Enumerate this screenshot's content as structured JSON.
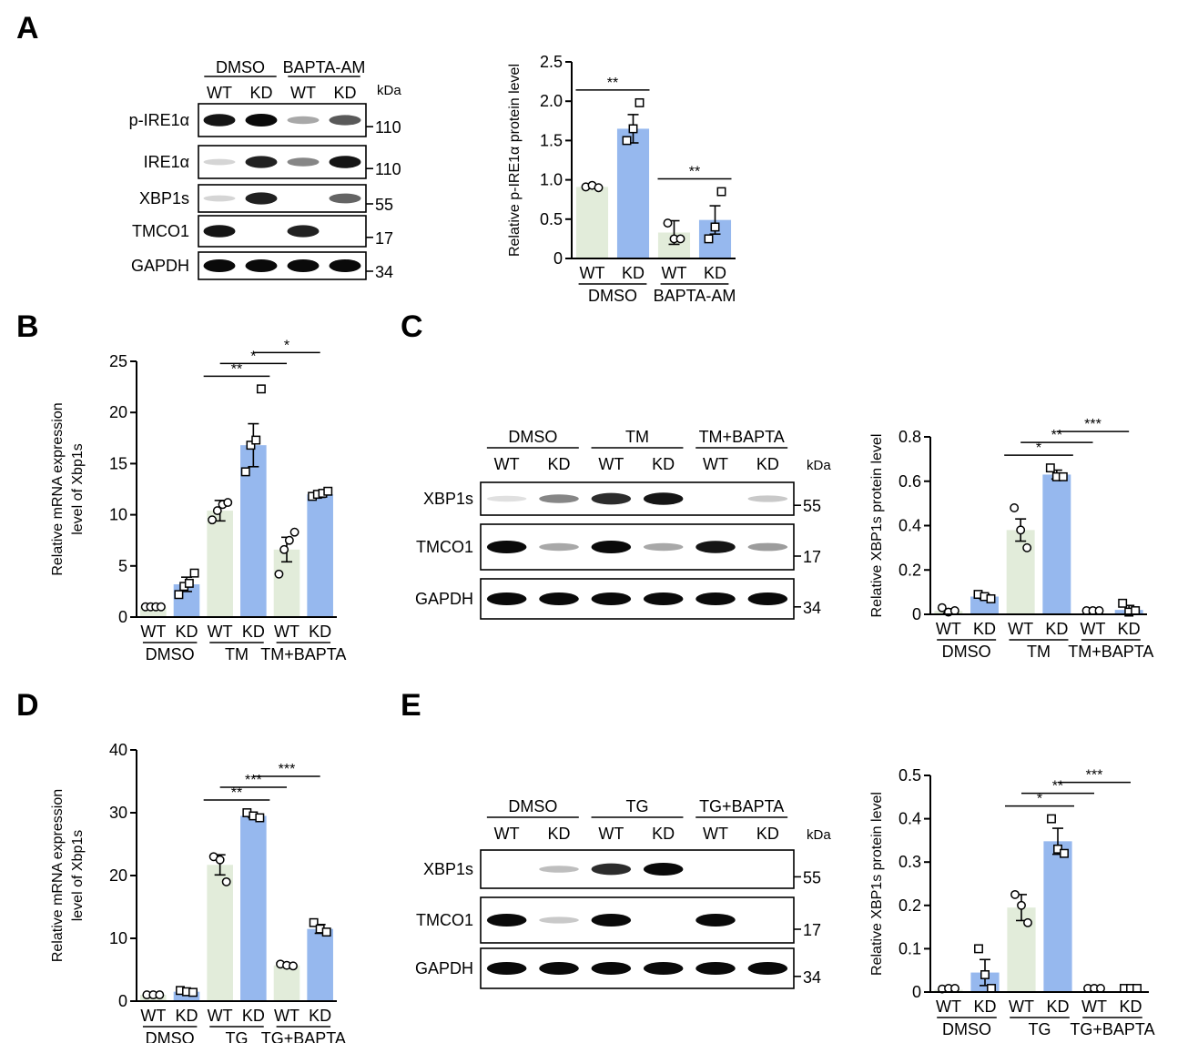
{
  "panel_labels": [
    "A",
    "B",
    "C",
    "D",
    "E"
  ],
  "blots": [
    {
      "panel": "A",
      "groups": [
        "DMSO",
        "BAPTA-AM"
      ],
      "lanes": [
        "WT",
        "KD",
        "WT",
        "KD"
      ],
      "kda_label": "kDa",
      "rows": [
        {
          "label": "p-IRE1α",
          "mw": "110",
          "intensity": [
            0.95,
            1.0,
            0.3,
            0.65
          ]
        },
        {
          "label": "IRE1α",
          "mw": "110",
          "intensity": [
            0.1,
            0.9,
            0.45,
            0.95
          ]
        },
        {
          "label": "XBP1s",
          "mw": "55",
          "intensity": [
            0.1,
            0.9,
            0.0,
            0.6
          ]
        },
        {
          "label": "TMCO1",
          "mw": "17",
          "intensity": [
            0.95,
            0.0,
            0.9,
            0.0
          ]
        },
        {
          "label": "GAPDH",
          "mw": "34",
          "intensity": [
            1.0,
            1.0,
            1.0,
            1.0
          ]
        }
      ]
    },
    {
      "panel": "C",
      "groups": [
        "DMSO",
        "TM",
        "TM+BAPTA"
      ],
      "lanes": [
        "WT",
        "KD",
        "WT",
        "KD",
        "WT",
        "KD"
      ],
      "kda_label": "kDa",
      "rows": [
        {
          "label": "XBP1s",
          "mw": "55",
          "intensity": [
            0.05,
            0.45,
            0.85,
            0.95,
            0.0,
            0.15
          ]
        },
        {
          "label": "TMCO1",
          "mw": "17",
          "intensity": [
            1.0,
            0.3,
            1.0,
            0.3,
            0.95,
            0.35
          ]
        },
        {
          "label": "GAPDH",
          "mw": "34",
          "intensity": [
            1.0,
            1.0,
            1.0,
            1.0,
            1.0,
            1.0
          ]
        }
      ]
    },
    {
      "panel": "E",
      "groups": [
        "DMSO",
        "TG",
        "TG+BAPTA"
      ],
      "lanes": [
        "WT",
        "KD",
        "WT",
        "KD",
        "WT",
        "KD"
      ],
      "kda_label": "kDa",
      "rows": [
        {
          "label": "XBP1s",
          "mw": "55",
          "intensity": [
            0.0,
            0.2,
            0.85,
            1.0,
            0.0,
            0.0
          ]
        },
        {
          "label": "TMCO1",
          "mw": "17",
          "intensity": [
            1.0,
            0.15,
            1.0,
            0.0,
            1.0,
            0.0
          ]
        },
        {
          "label": "GAPDH",
          "mw": "34",
          "intensity": [
            1.0,
            1.0,
            1.0,
            1.0,
            1.0,
            1.0
          ]
        }
      ]
    }
  ],
  "colors": {
    "wt_bar": "#e2ecda",
    "kd_bar": "#96b8ee",
    "axis": "#000000"
  },
  "chart_data": [
    {
      "panel": "A",
      "type": "bar",
      "categories": [
        "WT",
        "KD",
        "WT",
        "KD"
      ],
      "groups": [
        {
          "label": "DMSO",
          "span": [
            0,
            1
          ]
        },
        {
          "label": "BAPTA-AM",
          "span": [
            2,
            3
          ]
        }
      ],
      "values": [
        0.91,
        1.65,
        0.33,
        0.49
      ],
      "errors": [
        0.02,
        0.18,
        0.15,
        0.18
      ],
      "points": [
        [
          0.91,
          0.93,
          0.9
        ],
        [
          1.5,
          1.65,
          1.98
        ],
        [
          0.45,
          0.25,
          0.25
        ],
        [
          0.25,
          0.4,
          0.85
        ]
      ],
      "marker": [
        "circle",
        "square",
        "circle",
        "square"
      ],
      "ylabel": "Relative p-IRE1α protein level",
      "xlabel": "",
      "ylim": [
        0,
        2.5
      ],
      "yticks": [
        "0",
        "0.5",
        "1.0",
        "1.5",
        "2.0",
        "2.5"
      ],
      "ytick_values": [
        0,
        0.5,
        1.0,
        1.5,
        2.0,
        2.5
      ],
      "significance": [
        {
          "from": 0,
          "to": 1,
          "label": "**"
        },
        {
          "from": 2,
          "to": 3,
          "label": "**"
        }
      ]
    },
    {
      "panel": "B",
      "type": "bar",
      "categories": [
        "WT",
        "KD",
        "WT",
        "KD",
        "WT",
        "KD"
      ],
      "groups": [
        {
          "label": "DMSO",
          "span": [
            0,
            1
          ]
        },
        {
          "label": "TM",
          "span": [
            2,
            3
          ]
        },
        {
          "label": "TM+BAPTA",
          "span": [
            4,
            5
          ]
        }
      ],
      "values": [
        1.0,
        3.2,
        10.4,
        16.8,
        6.6,
        12.0
      ],
      "errors": [
        0.1,
        0.7,
        1.0,
        2.1,
        1.2,
        0.3
      ],
      "points": [
        [
          1.0,
          1.0,
          1.0,
          1.0
        ],
        [
          2.2,
          3.0,
          3.3,
          4.3
        ],
        [
          9.5,
          10.4,
          11.0,
          11.2
        ],
        [
          14.2,
          16.8,
          17.3,
          22.3
        ],
        [
          4.2,
          6.6,
          7.5,
          8.3
        ],
        [
          11.8,
          12.0,
          12.1,
          12.3
        ]
      ],
      "marker": [
        "circle",
        "square",
        "circle",
        "square",
        "circle",
        "square"
      ],
      "ylabel": [
        "Relative mRNA expression",
        "level of Xbp1s"
      ],
      "xlabel": "",
      "ylim": [
        0,
        25
      ],
      "yticks": [
        "0",
        "5",
        "10",
        "15",
        "20",
        "25"
      ],
      "ytick_values": [
        0,
        5,
        10,
        15,
        20,
        25
      ],
      "significance": [
        {
          "from": 2,
          "to": 3,
          "label": "**"
        },
        {
          "from": 2,
          "to": 4,
          "label": "*"
        },
        {
          "from": 3,
          "to": 5,
          "label": "*"
        }
      ]
    },
    {
      "panel": "C",
      "type": "bar",
      "categories": [
        "WT",
        "KD",
        "WT",
        "KD",
        "WT",
        "KD"
      ],
      "groups": [
        {
          "label": "DMSO",
          "span": [
            0,
            1
          ]
        },
        {
          "label": "TM",
          "span": [
            2,
            3
          ]
        },
        {
          "label": "TM+BAPTA",
          "span": [
            4,
            5
          ]
        }
      ],
      "values": [
        0.015,
        0.08,
        0.38,
        0.63,
        0.0,
        0.02
      ],
      "errors": [
        0.01,
        0.01,
        0.05,
        0.02,
        0.0,
        0.02
      ],
      "points": [
        [
          0.03,
          0.01,
          0.0
        ],
        [
          0.09,
          0.08,
          0.07
        ],
        [
          0.48,
          0.38,
          0.3
        ],
        [
          0.66,
          0.62,
          0.62
        ],
        [
          0.0,
          0.0,
          0.0
        ],
        [
          0.05,
          0.01,
          0.0
        ]
      ],
      "marker": [
        "circle",
        "square",
        "circle",
        "square",
        "circle",
        "square"
      ],
      "ylabel": "Relative XBP1s protein level",
      "xlabel": "",
      "ylim": [
        0,
        0.8
      ],
      "yticks": [
        "0",
        "0.2",
        "0.4",
        "0.6",
        "0.8"
      ],
      "ytick_values": [
        0,
        0.2,
        0.4,
        0.6,
        0.8
      ],
      "significance": [
        {
          "from": 2,
          "to": 3,
          "label": "*"
        },
        {
          "from": 2,
          "to": 4,
          "label": "**"
        },
        {
          "from": 3,
          "to": 5,
          "label": "***"
        }
      ]
    },
    {
      "panel": "D",
      "type": "bar",
      "categories": [
        "WT",
        "KD",
        "WT",
        "KD",
        "WT",
        "KD"
      ],
      "groups": [
        {
          "label": "DMSO",
          "span": [
            0,
            1
          ]
        },
        {
          "label": "TG",
          "span": [
            2,
            3
          ]
        },
        {
          "label": "TG+BAPTA",
          "span": [
            4,
            5
          ]
        }
      ],
      "values": [
        1.0,
        1.5,
        21.7,
        29.5,
        5.7,
        11.5
      ],
      "errors": [
        0.1,
        0.2,
        1.6,
        0.3,
        0.2,
        0.7
      ],
      "points": [
        [
          1.0,
          1.0,
          1.0
        ],
        [
          1.7,
          1.5,
          1.4
        ],
        [
          23.0,
          22.5,
          19.0
        ],
        [
          30.0,
          29.5,
          29.2
        ],
        [
          5.9,
          5.7,
          5.6
        ],
        [
          12.5,
          11.5,
          11.0
        ]
      ],
      "marker": [
        "circle",
        "square",
        "circle",
        "square",
        "circle",
        "square"
      ],
      "ylabel": [
        "Relative mRNA expression",
        "level of Xbp1s"
      ],
      "xlabel": "",
      "ylim": [
        0,
        40
      ],
      "yticks": [
        "0",
        "10",
        "20",
        "30",
        "40"
      ],
      "ytick_values": [
        0,
        10,
        20,
        30,
        40
      ],
      "significance": [
        {
          "from": 2,
          "to": 3,
          "label": "**"
        },
        {
          "from": 2,
          "to": 4,
          "label": "***"
        },
        {
          "from": 3,
          "to": 5,
          "label": "***"
        }
      ]
    },
    {
      "panel": "E",
      "type": "bar",
      "categories": [
        "WT",
        "KD",
        "WT",
        "KD",
        "WT",
        "KD"
      ],
      "groups": [
        {
          "label": "DMSO",
          "span": [
            0,
            1
          ]
        },
        {
          "label": "TG",
          "span": [
            2,
            3
          ]
        },
        {
          "label": "TG+BAPTA",
          "span": [
            4,
            5
          ]
        }
      ],
      "values": [
        0.005,
        0.045,
        0.195,
        0.348,
        0.0,
        0.0
      ],
      "errors": [
        0.003,
        0.03,
        0.03,
        0.03,
        0.0,
        0.0
      ],
      "points": [
        [
          0.007,
          0.0,
          0.0
        ],
        [
          0.1,
          0.04,
          0.0
        ],
        [
          0.225,
          0.2,
          0.16
        ],
        [
          0.4,
          0.33,
          0.32
        ],
        [
          0.0,
          0.0,
          0.0
        ],
        [
          0.0,
          0.0,
          0.0
        ]
      ],
      "marker": [
        "circle",
        "square",
        "circle",
        "square",
        "circle",
        "square"
      ],
      "ylabel": "Relative XBP1s protein level",
      "xlabel": "",
      "ylim": [
        0,
        0.5
      ],
      "yticks": [
        "0",
        "0.1",
        "0.2",
        "0.3",
        "0.4",
        "0.5"
      ],
      "ytick_values": [
        0,
        0.1,
        0.2,
        0.3,
        0.4,
        0.5
      ],
      "significance": [
        {
          "from": 2,
          "to": 3,
          "label": "*"
        },
        {
          "from": 2,
          "to": 4,
          "label": "**"
        },
        {
          "from": 3,
          "to": 5,
          "label": "***"
        }
      ]
    }
  ]
}
